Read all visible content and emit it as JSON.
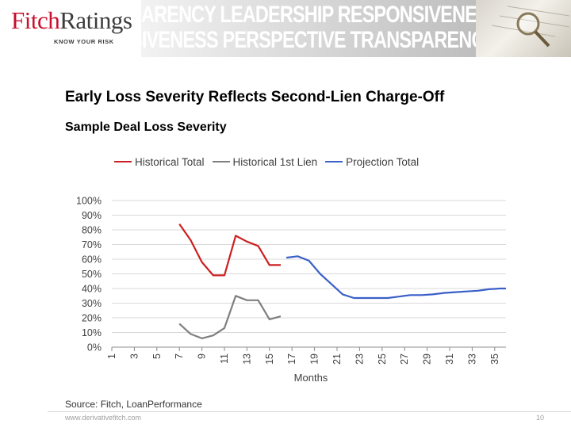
{
  "header": {
    "logo_brand": "Fitch",
    "logo_brand_second": "Ratings",
    "logo_tagline": "KNOW YOUR RISK",
    "banner_line_1": "ARENCY LEADERSHIP RESPONSIVENESS",
    "banner_line_2": "SIVENESS PERSPECTIVE TRANSPARENCY"
  },
  "slide": {
    "title": "Early Loss Severity Reflects Second-Lien Charge-Off",
    "source": "Source: Fitch, LoanPerformance"
  },
  "footer": {
    "url": "www.derivativefitch.com",
    "page_number": "10"
  },
  "chart_data": {
    "type": "line",
    "title": "Sample Deal Loss Severity",
    "xlabel": "Months",
    "ylabel": "",
    "x_ticks": [
      1,
      3,
      5,
      7,
      9,
      11,
      13,
      15,
      17,
      19,
      21,
      23,
      25,
      27,
      29,
      31,
      33,
      35
    ],
    "xlim": [
      1,
      36
    ],
    "ylim": [
      0,
      100
    ],
    "y_ticks": [
      "0%",
      "10%",
      "20%",
      "30%",
      "40%",
      "50%",
      "60%",
      "70%",
      "80%",
      "90%",
      "100%"
    ],
    "grid": true,
    "legend_position": "top",
    "series": [
      {
        "name": "Historical Total",
        "color": "#cc1f1f",
        "points": [
          [
            7,
            84
          ],
          [
            8,
            73
          ],
          [
            9,
            58
          ],
          [
            10,
            49
          ],
          [
            11,
            49
          ],
          [
            12,
            76
          ],
          [
            13,
            72
          ],
          [
            14,
            69
          ],
          [
            15,
            56
          ],
          [
            16,
            56
          ]
        ]
      },
      {
        "name": "Historical 1st Lien",
        "color": "#7f7f7f",
        "points": [
          [
            7,
            16
          ],
          [
            8,
            9
          ],
          [
            9,
            6
          ],
          [
            10,
            8
          ],
          [
            11,
            13
          ],
          [
            12,
            35
          ],
          [
            13,
            32
          ],
          [
            14,
            32
          ],
          [
            15,
            19
          ],
          [
            16,
            21
          ]
        ]
      },
      {
        "name": "Projection Total",
        "color": "#3a5fc8",
        "points": [
          [
            16.5,
            61
          ],
          [
            17.5,
            62
          ],
          [
            18.5,
            59
          ],
          [
            19.5,
            50
          ],
          [
            20.5,
            43
          ],
          [
            21.5,
            36
          ],
          [
            22.5,
            33.5
          ],
          [
            23.5,
            33.5
          ],
          [
            24.5,
            33.5
          ],
          [
            25.5,
            33.5
          ],
          [
            26.5,
            34.5
          ],
          [
            27.5,
            35.5
          ],
          [
            28.5,
            35.5
          ],
          [
            29.5,
            36
          ],
          [
            30.5,
            37
          ],
          [
            31.5,
            37.5
          ],
          [
            32.5,
            38
          ],
          [
            33.5,
            38.5
          ],
          [
            34.5,
            39.5
          ],
          [
            35.5,
            40
          ],
          [
            36,
            40
          ]
        ]
      }
    ]
  }
}
